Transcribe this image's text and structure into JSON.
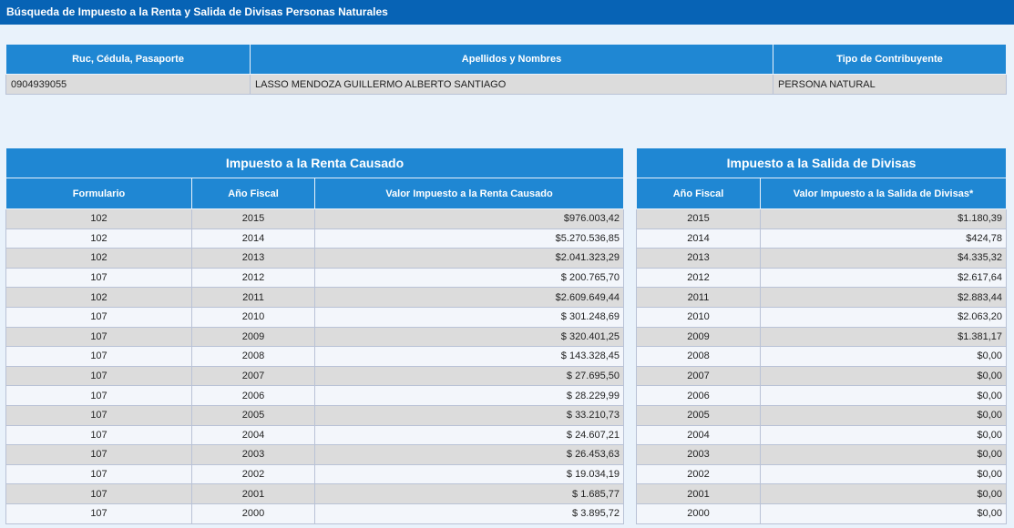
{
  "title": "Búsqueda de Impuesto a la Renta y Salida de Divisas Personas Naturales",
  "taxpayer": {
    "headers": [
      "Ruc, Cédula, Pasaporte",
      "Apellidos y Nombres",
      "Tipo de Contribuyente"
    ],
    "id": "0904939055",
    "name": "LASSO MENDOZA GUILLERMO ALBERTO SANTIAGO",
    "type": "PERSONA NATURAL"
  },
  "renta": {
    "caption": "Impuesto a la Renta Causado",
    "headers": [
      "Formulario",
      "Año Fiscal",
      "Valor Impuesto a la Renta Causado"
    ],
    "rows": [
      [
        "102",
        "2015",
        "$976.003,42"
      ],
      [
        "102",
        "2014",
        "$5.270.536,85"
      ],
      [
        "102",
        "2013",
        "$2.041.323,29"
      ],
      [
        "107",
        "2012",
        "$ 200.765,70"
      ],
      [
        "102",
        "2011",
        "$2.609.649,44"
      ],
      [
        "107",
        "2010",
        "$ 301.248,69"
      ],
      [
        "107",
        "2009",
        "$ 320.401,25"
      ],
      [
        "107",
        "2008",
        "$ 143.328,45"
      ],
      [
        "107",
        "2007",
        "$ 27.695,50"
      ],
      [
        "107",
        "2006",
        "$ 28.229,99"
      ],
      [
        "107",
        "2005",
        "$ 33.210,73"
      ],
      [
        "107",
        "2004",
        "$ 24.607,21"
      ],
      [
        "107",
        "2003",
        "$ 26.453,63"
      ],
      [
        "107",
        "2002",
        "$ 19.034,19"
      ],
      [
        "107",
        "2001",
        "$ 1.685,77"
      ],
      [
        "107",
        "2000",
        "$ 3.895,72"
      ]
    ]
  },
  "divisas": {
    "caption": "Impuesto a la Salida de Divisas",
    "headers": [
      "Año Fiscal",
      "Valor Impuesto a la Salida de Divisas*"
    ],
    "rows": [
      [
        "2015",
        "$1.180,39"
      ],
      [
        "2014",
        "$424,78"
      ],
      [
        "2013",
        "$4.335,32"
      ],
      [
        "2012",
        "$2.617,64"
      ],
      [
        "2011",
        "$2.883,44"
      ],
      [
        "2010",
        "$2.063,20"
      ],
      [
        "2009",
        "$1.381,17"
      ],
      [
        "2008",
        "$0,00"
      ],
      [
        "2007",
        "$0,00"
      ],
      [
        "2006",
        "$0,00"
      ],
      [
        "2005",
        "$0,00"
      ],
      [
        "2004",
        "$0,00"
      ],
      [
        "2003",
        "$0,00"
      ],
      [
        "2002",
        "$0,00"
      ],
      [
        "2001",
        "$0,00"
      ],
      [
        "2000",
        "$0,00"
      ]
    ]
  }
}
